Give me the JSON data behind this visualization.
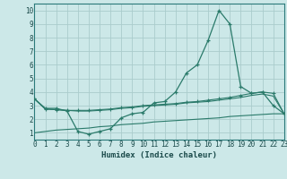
{
  "xlabel": "Humidex (Indice chaleur)",
  "background_color": "#cce8e8",
  "grid_color": "#aacccc",
  "line_color": "#2a7a6a",
  "x_values": [
    0,
    1,
    2,
    3,
    4,
    5,
    6,
    7,
    8,
    9,
    10,
    11,
    12,
    13,
    14,
    15,
    16,
    17,
    18,
    19,
    20,
    21,
    22,
    23
  ],
  "series1": [
    3.5,
    2.8,
    2.8,
    2.6,
    1.1,
    0.9,
    1.1,
    1.3,
    2.1,
    2.4,
    2.5,
    3.2,
    3.3,
    4.0,
    5.4,
    6.0,
    7.8,
    10.0,
    9.0,
    4.4,
    3.9,
    4.0,
    3.0,
    2.4
  ],
  "series2": [
    3.5,
    2.75,
    2.7,
    2.65,
    2.65,
    2.65,
    2.7,
    2.75,
    2.85,
    2.9,
    3.0,
    3.05,
    3.1,
    3.15,
    3.25,
    3.3,
    3.4,
    3.5,
    3.6,
    3.75,
    3.9,
    4.0,
    3.9,
    2.4
  ],
  "series3": [
    3.5,
    2.75,
    2.7,
    2.65,
    2.6,
    2.6,
    2.65,
    2.7,
    2.8,
    2.85,
    2.95,
    3.0,
    3.05,
    3.1,
    3.2,
    3.25,
    3.3,
    3.4,
    3.5,
    3.6,
    3.75,
    3.85,
    3.7,
    2.4
  ],
  "series4": [
    1.0,
    1.1,
    1.2,
    1.25,
    1.3,
    1.35,
    1.45,
    1.5,
    1.6,
    1.65,
    1.7,
    1.8,
    1.85,
    1.9,
    1.95,
    2.0,
    2.05,
    2.1,
    2.2,
    2.25,
    2.3,
    2.35,
    2.4,
    2.4
  ],
  "xlim": [
    0,
    23
  ],
  "ylim": [
    0.5,
    10.5
  ],
  "yticks": [
    1,
    2,
    3,
    4,
    5,
    6,
    7,
    8,
    9,
    10
  ],
  "xticks": [
    0,
    1,
    2,
    3,
    4,
    5,
    6,
    7,
    8,
    9,
    10,
    11,
    12,
    13,
    14,
    15,
    16,
    17,
    18,
    19,
    20,
    21,
    22,
    23
  ]
}
